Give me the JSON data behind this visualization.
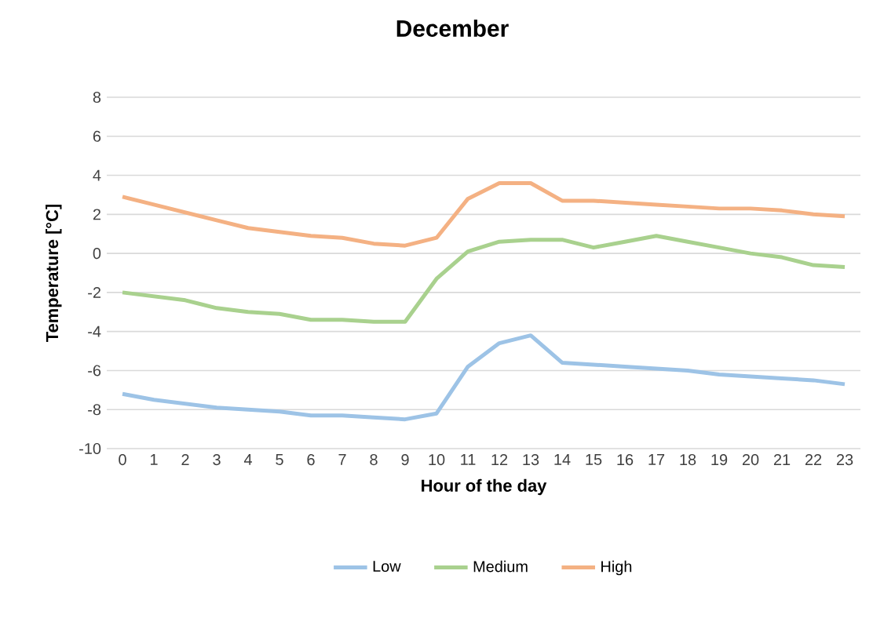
{
  "chart_data": {
    "type": "line",
    "title": "December",
    "xlabel": "Hour of the day",
    "ylabel": "Temperature [°C]",
    "categories": [
      "0",
      "1",
      "2",
      "3",
      "4",
      "5",
      "6",
      "7",
      "8",
      "9",
      "10",
      "11",
      "12",
      "13",
      "14",
      "15",
      "16",
      "17",
      "18",
      "19",
      "20",
      "21",
      "22",
      "23"
    ],
    "series": [
      {
        "name": "Low",
        "color": "#9dc3e6",
        "values": [
          -7.2,
          -7.5,
          -7.7,
          -7.9,
          -8.0,
          -8.1,
          -8.3,
          -8.3,
          -8.4,
          -8.5,
          -8.2,
          -5.8,
          -4.6,
          -4.2,
          -5.6,
          -5.7,
          -5.8,
          -5.9,
          -6.0,
          -6.2,
          -6.3,
          -6.4,
          -6.5,
          -6.7
        ]
      },
      {
        "name": "Medium",
        "color": "#a9d18e",
        "values": [
          -2.0,
          -2.2,
          -2.4,
          -2.8,
          -3.0,
          -3.1,
          -3.4,
          -3.4,
          -3.5,
          -3.5,
          -1.3,
          0.1,
          0.6,
          0.7,
          0.7,
          0.3,
          0.6,
          0.9,
          0.6,
          0.3,
          0.0,
          -0.2,
          -0.6,
          -0.7
        ]
      },
      {
        "name": "High",
        "color": "#f4b183",
        "values": [
          2.9,
          2.5,
          2.1,
          1.7,
          1.3,
          1.1,
          0.9,
          0.8,
          0.5,
          0.4,
          0.8,
          2.8,
          3.6,
          3.6,
          2.7,
          2.7,
          2.6,
          2.5,
          2.4,
          2.3,
          2.3,
          2.2,
          2.0,
          1.9
        ]
      }
    ],
    "ylim": [
      -10,
      8
    ],
    "yticks": [
      -10,
      -8,
      -6,
      -4,
      -2,
      0,
      2,
      4,
      6,
      8
    ],
    "grid": "y",
    "legend": "bottom",
    "marker": "none",
    "line_style": "solid"
  }
}
